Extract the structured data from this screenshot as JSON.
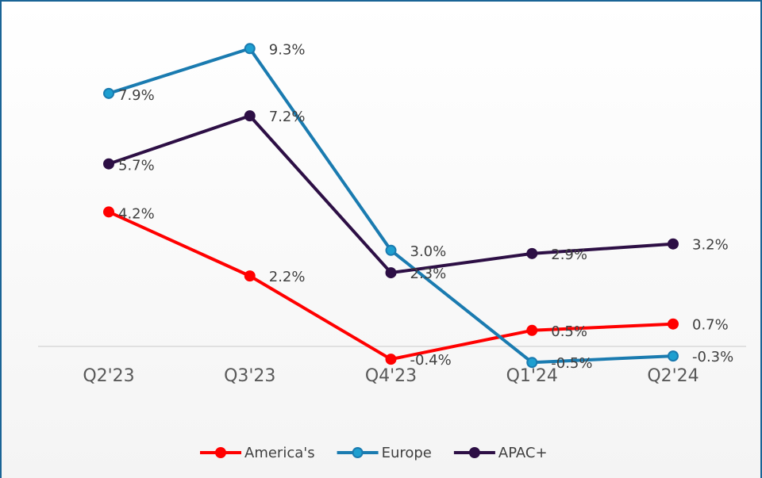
{
  "chart_data": {
    "type": "line",
    "categories": [
      "Q2'23",
      "Q3'23",
      "Q4'23",
      "Q1'24",
      "Q2'24"
    ],
    "series": [
      {
        "name": "America's",
        "color": "#ff0000",
        "values": [
          4.2,
          2.2,
          -0.4,
          0.5,
          0.7
        ],
        "value_labels": [
          "4.2%",
          "2.2%",
          "-0.4%",
          "0.5%",
          "0.7%"
        ]
      },
      {
        "name": "Europe",
        "color": "#1a7bb0",
        "values": [
          7.9,
          9.3,
          3.0,
          -0.5,
          -0.3
        ],
        "value_labels": [
          "7.9%",
          "9.3%",
          "3.0%",
          "-0.5%",
          "-0.3%"
        ]
      },
      {
        "name": "APAC+",
        "color": "#2d0f45",
        "values": [
          5.7,
          7.2,
          2.3,
          2.9,
          3.2
        ],
        "value_labels": [
          "5.7%",
          "7.2%",
          "2.3%",
          "2.9%",
          "3.2%"
        ]
      }
    ],
    "ylim": [
      -1,
      10
    ],
    "legend": "bottom"
  }
}
